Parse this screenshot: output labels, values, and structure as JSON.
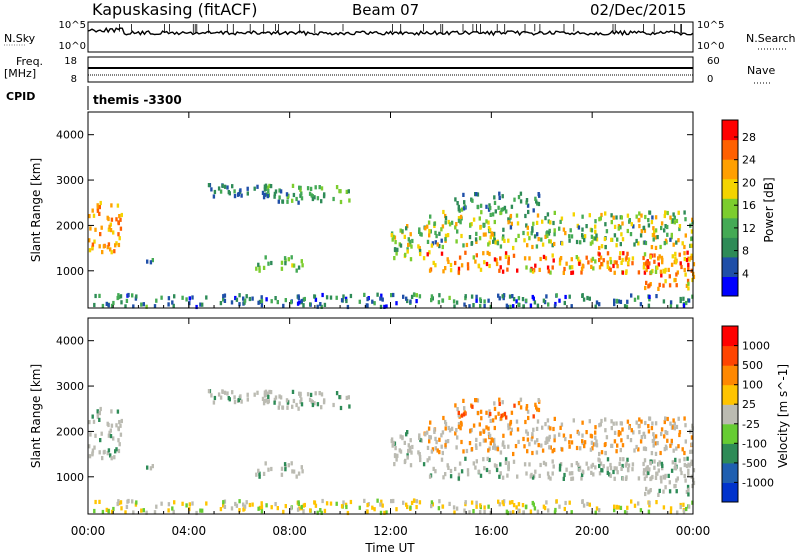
{
  "header": {
    "station": "Kapuskasing (fitACF)",
    "beam": "Beam 07",
    "date": "02/Dec/2015"
  },
  "top_panels": {
    "nsky_label": "N.Sky",
    "nsky_ticks": [
      "10^5",
      "10^0"
    ],
    "nsearch_label": "N.Search",
    "nsearch_ticks": [
      "10^5",
      "10^0"
    ],
    "freq_label_1": "Freq.",
    "freq_label_2": "[MHz]",
    "freq_ticks": [
      "18",
      "8"
    ],
    "nave_label": "Nave",
    "nave_ticks": [
      "60",
      "0"
    ],
    "cpid_label": "CPID",
    "cpid_value": "themis -3300"
  },
  "colors": {
    "power_scale": [
      "#0000ff",
      "#1f4fa8",
      "#2e8b57",
      "#44aa55",
      "#7ccd2e",
      "#f4d400",
      "#ff9f00",
      "#ff6000",
      "#ff0000"
    ],
    "velocity_scale": [
      "#0033cc",
      "#1f5fb0",
      "#2e8b57",
      "#66cc33",
      "#bbbbb2",
      "#ffc400",
      "#ff8800",
      "#ff4400",
      "#ff0000"
    ]
  },
  "chart_data": [
    {
      "type": "heatmap",
      "panel": "power",
      "ylabel": "Slant Range [km]",
      "yticks": [
        "1000",
        "2000",
        "3000",
        "4000"
      ],
      "ylim": [
        180,
        4500
      ],
      "xlim": [
        0,
        24
      ],
      "colorbar_label": "Power [dB]",
      "colorbar_ticks": [
        "4",
        "8",
        "12",
        "16",
        "20",
        "24",
        "28"
      ],
      "colorbar_range": [
        0,
        31
      ]
    },
    {
      "type": "heatmap",
      "panel": "velocity",
      "ylabel": "Slant Range [km]",
      "yticks": [
        "1000",
        "2000",
        "3000",
        "4000"
      ],
      "ylim": [
        180,
        4500
      ],
      "xlim": [
        0,
        24
      ],
      "colorbar_label": "Velocity [m s^-1]",
      "colorbar_ticks": [
        "1000",
        "500",
        "100",
        "25",
        "-25",
        "-100",
        "-500",
        "-1000"
      ]
    }
  ],
  "time_axis": {
    "ticks": [
      "00:00",
      "04:00",
      "08:00",
      "12:00",
      "16:00",
      "20:00",
      "00:00"
    ],
    "xlabel": "Time UT"
  }
}
